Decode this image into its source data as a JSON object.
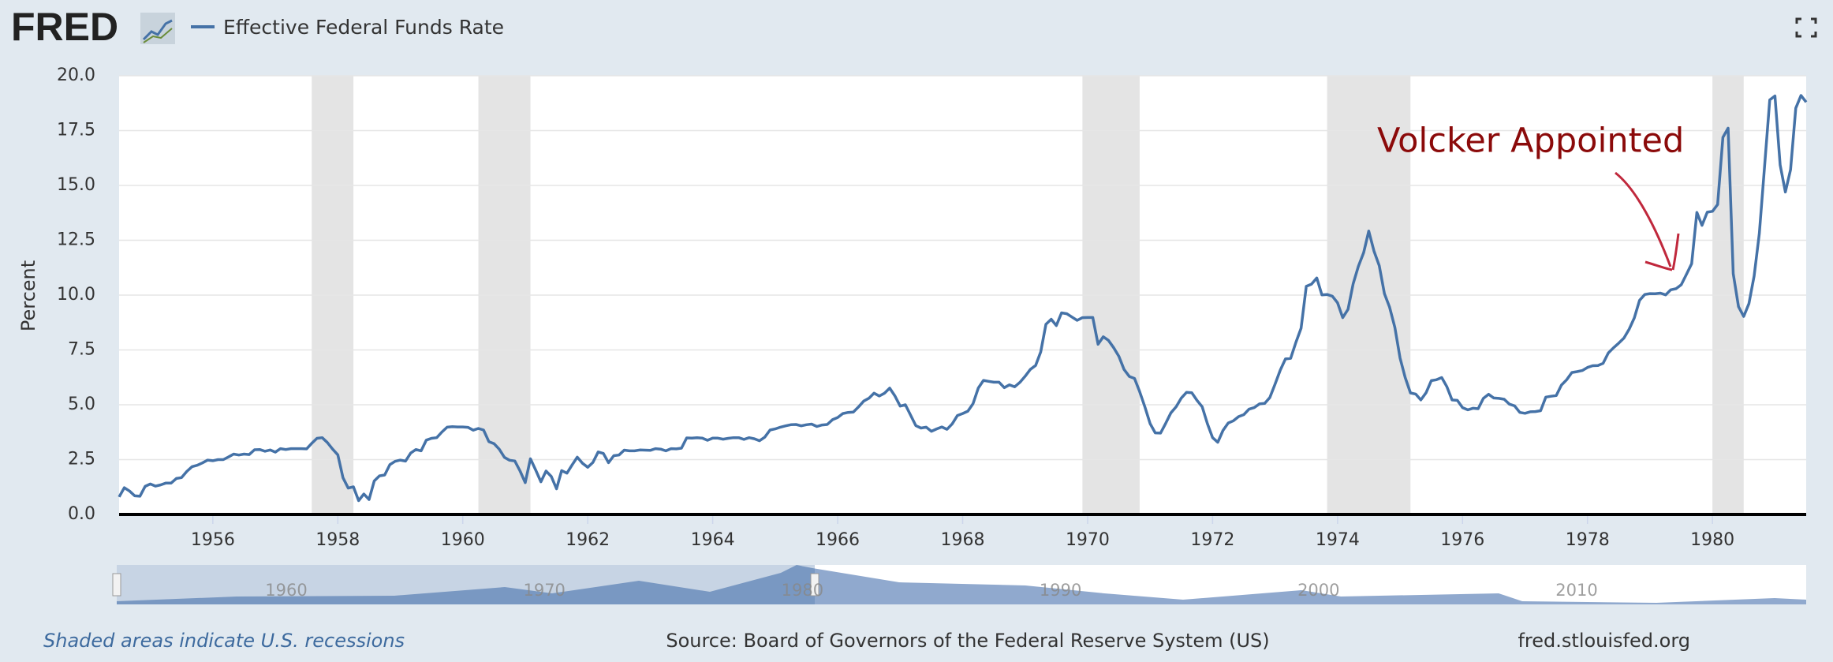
{
  "logo": "FRED",
  "footer": {
    "note": "Shaded areas indicate U.S. recessions",
    "source": "Source: Board of Governors of the Federal Reserve System (US)",
    "site": "fred.stlouisfed.org"
  },
  "navigator_labels": [
    "1960",
    "1970",
    "1980",
    "1990",
    "2000",
    "2010"
  ],
  "chart_data": {
    "type": "line",
    "y_label": "Percent",
    "annotation": "Volcker Appointed",
    "grid": true,
    "recessions": [
      [
        1957.583,
        1958.25
      ],
      [
        1960.25,
        1961.083
      ],
      [
        1969.917,
        1970.833
      ],
      [
        1973.833,
        1975.167
      ],
      [
        1980,
        1980.5
      ]
    ],
    "xlim": [
      1954.5,
      1981.5
    ],
    "xticks": [
      1956,
      1958,
      1960,
      1962,
      1964,
      1966,
      1968,
      1970,
      1972,
      1974,
      1976,
      1978,
      1980
    ],
    "ylim": [
      0,
      20
    ],
    "yticks": [
      {
        "value": 0,
        "label": "0.0"
      },
      {
        "value": 2.5,
        "label": "2.5"
      },
      {
        "value": 5,
        "label": "5.0"
      },
      {
        "value": 7.5,
        "label": "7.5"
      },
      {
        "value": 10,
        "label": "10.0"
      },
      {
        "value": 12.5,
        "label": "12.5"
      },
      {
        "value": 15,
        "label": "15.0"
      },
      {
        "value": 17.5,
        "label": "17.5"
      },
      {
        "value": 20,
        "label": "20.0"
      }
    ],
    "x": [
      1954.5,
      1954.583,
      1954.667,
      1954.75,
      1954.833,
      1954.917,
      1955,
      1955.083,
      1955.167,
      1955.25,
      1955.333,
      1955.417,
      1955.5,
      1955.583,
      1955.667,
      1955.75,
      1955.833,
      1955.917,
      1956,
      1956.083,
      1956.167,
      1956.25,
      1956.333,
      1956.417,
      1956.5,
      1956.583,
      1956.667,
      1956.75,
      1956.833,
      1956.917,
      1957,
      1957.083,
      1957.167,
      1957.25,
      1957.333,
      1957.417,
      1957.5,
      1957.583,
      1957.667,
      1957.75,
      1957.833,
      1957.917,
      1958,
      1958.083,
      1958.167,
      1958.25,
      1958.333,
      1958.417,
      1958.5,
      1958.583,
      1958.667,
      1958.75,
      1958.833,
      1958.917,
      1959,
      1959.083,
      1959.167,
      1959.25,
      1959.333,
      1959.417,
      1959.5,
      1959.583,
      1959.667,
      1959.75,
      1959.833,
      1959.917,
      1960,
      1960.083,
      1960.167,
      1960.25,
      1960.333,
      1960.417,
      1960.5,
      1960.583,
      1960.667,
      1960.75,
      1960.833,
      1960.917,
      1961,
      1961.083,
      1961.167,
      1961.25,
      1961.333,
      1961.417,
      1961.5,
      1961.583,
      1961.667,
      1961.75,
      1961.833,
      1961.917,
      1962,
      1962.083,
      1962.167,
      1962.25,
      1962.333,
      1962.417,
      1962.5,
      1962.583,
      1962.667,
      1962.75,
      1962.833,
      1962.917,
      1963,
      1963.083,
      1963.167,
      1963.25,
      1963.333,
      1963.417,
      1963.5,
      1963.583,
      1963.667,
      1963.75,
      1963.833,
      1963.917,
      1964,
      1964.083,
      1964.167,
      1964.25,
      1964.333,
      1964.417,
      1964.5,
      1964.583,
      1964.667,
      1964.75,
      1964.833,
      1964.917,
      1965,
      1965.083,
      1965.167,
      1965.25,
      1965.333,
      1965.417,
      1965.5,
      1965.583,
      1965.667,
      1965.75,
      1965.833,
      1965.917,
      1966,
      1966.083,
      1966.167,
      1966.25,
      1966.333,
      1966.417,
      1966.5,
      1966.583,
      1966.667,
      1966.75,
      1966.833,
      1966.917,
      1967,
      1967.083,
      1967.167,
      1967.25,
      1967.333,
      1967.417,
      1967.5,
      1967.583,
      1967.667,
      1967.75,
      1967.833,
      1967.917,
      1968,
      1968.083,
      1968.167,
      1968.25,
      1968.333,
      1968.417,
      1968.5,
      1968.583,
      1968.667,
      1968.75,
      1968.833,
      1968.917,
      1969,
      1969.083,
      1969.167,
      1969.25,
      1969.333,
      1969.417,
      1969.5,
      1969.583,
      1969.667,
      1969.75,
      1969.833,
      1969.917,
      1970,
      1970.083,
      1970.167,
      1970.25,
      1970.333,
      1970.417,
      1970.5,
      1970.583,
      1970.667,
      1970.75,
      1970.833,
      1970.917,
      1971,
      1971.083,
      1971.167,
      1971.25,
      1971.333,
      1971.417,
      1971.5,
      1971.583,
      1971.667,
      1971.75,
      1971.833,
      1971.917,
      1972,
      1972.083,
      1972.167,
      1972.25,
      1972.333,
      1972.417,
      1972.5,
      1972.583,
      1972.667,
      1972.75,
      1972.833,
      1972.917,
      1973,
      1973.083,
      1973.167,
      1973.25,
      1973.333,
      1973.417,
      1973.5,
      1973.583,
      1973.667,
      1973.75,
      1973.833,
      1973.917,
      1974,
      1974.083,
      1974.167,
      1974.25,
      1974.333,
      1974.417,
      1974.5,
      1974.583,
      1974.667,
      1974.75,
      1974.833,
      1974.917,
      1975,
      1975.083,
      1975.167,
      1975.25,
      1975.333,
      1975.417,
      1975.5,
      1975.583,
      1975.667,
      1975.75,
      1975.833,
      1975.917,
      1976,
      1976.083,
      1976.167,
      1976.25,
      1976.333,
      1976.417,
      1976.5,
      1976.583,
      1976.667,
      1976.75,
      1976.833,
      1976.917,
      1977,
      1977.083,
      1977.167,
      1977.25,
      1977.333,
      1977.417,
      1977.5,
      1977.583,
      1977.667,
      1977.75,
      1977.833,
      1977.917,
      1978,
      1978.083,
      1978.167,
      1978.25,
      1978.333,
      1978.417,
      1978.5,
      1978.583,
      1978.667,
      1978.75,
      1978.833,
      1978.917,
      1979,
      1979.083,
      1979.167,
      1979.25,
      1979.333,
      1979.417,
      1979.5,
      1979.583,
      1979.667,
      1979.75,
      1979.833,
      1979.917,
      1980,
      1980.083,
      1980.167,
      1980.25,
      1980.333,
      1980.417,
      1980.5,
      1980.583,
      1980.667,
      1980.75,
      1980.833,
      1980.917,
      1981,
      1981.083,
      1981.167,
      1981.25,
      1981.333,
      1981.417,
      1981.5
    ],
    "series": [
      {
        "name": "Effective Federal Funds Rate",
        "color": "#4572a7",
        "values": [
          0.8,
          1.22,
          1.07,
          0.85,
          0.83,
          1.28,
          1.39,
          1.29,
          1.35,
          1.43,
          1.43,
          1.64,
          1.68,
          1.96,
          2.18,
          2.24,
          2.35,
          2.48,
          2.45,
          2.5,
          2.5,
          2.62,
          2.75,
          2.71,
          2.75,
          2.73,
          2.95,
          2.96,
          2.88,
          2.94,
          2.84,
          3.0,
          2.96,
          3.0,
          3.0,
          3.0,
          2.99,
          3.24,
          3.47,
          3.5,
          3.28,
          2.98,
          2.72,
          1.67,
          1.2,
          1.26,
          0.63,
          0.93,
          0.68,
          1.53,
          1.76,
          1.8,
          2.27,
          2.42,
          2.48,
          2.43,
          2.8,
          2.96,
          2.9,
          3.39,
          3.47,
          3.5,
          3.76,
          3.98,
          4.0,
          3.99,
          3.99,
          3.97,
          3.84,
          3.92,
          3.85,
          3.32,
          3.23,
          2.98,
          2.6,
          2.47,
          2.44,
          1.98,
          1.45,
          2.54,
          2.02,
          1.49,
          1.98,
          1.73,
          1.17,
          2.0,
          1.88,
          2.26,
          2.61,
          2.33,
          2.15,
          2.37,
          2.85,
          2.78,
          2.36,
          2.68,
          2.71,
          2.93,
          2.9,
          2.9,
          2.94,
          2.93,
          2.92,
          3.0,
          2.98,
          2.9,
          3.0,
          2.99,
          3.02,
          3.49,
          3.48,
          3.5,
          3.48,
          3.38,
          3.48,
          3.48,
          3.43,
          3.47,
          3.5,
          3.5,
          3.42,
          3.5,
          3.45,
          3.36,
          3.52,
          3.85,
          3.9,
          3.98,
          4.04,
          4.09,
          4.1,
          4.04,
          4.09,
          4.12,
          4.01,
          4.08,
          4.1,
          4.32,
          4.42,
          4.6,
          4.65,
          4.67,
          4.9,
          5.17,
          5.3,
          5.53,
          5.4,
          5.53,
          5.76,
          5.4,
          4.94,
          5.0,
          4.53,
          4.05,
          3.94,
          3.98,
          3.79,
          3.9,
          3.99,
          3.88,
          4.13,
          4.51,
          4.6,
          4.71,
          5.05,
          5.76,
          6.11,
          6.07,
          6.03,
          6.03,
          5.78,
          5.91,
          5.82,
          6.02,
          6.3,
          6.61,
          6.79,
          7.41,
          8.67,
          8.9,
          8.61,
          9.19,
          9.15,
          9.0,
          8.85,
          8.97,
          8.98,
          8.98,
          7.76,
          8.1,
          7.94,
          7.6,
          7.21,
          6.61,
          6.29,
          6.2,
          5.6,
          4.9,
          4.14,
          3.72,
          3.71,
          4.16,
          4.63,
          4.91,
          5.31,
          5.57,
          5.55,
          5.2,
          4.91,
          4.14,
          3.5,
          3.29,
          3.83,
          4.17,
          4.27,
          4.46,
          4.55,
          4.8,
          4.87,
          5.04,
          5.06,
          5.33,
          5.94,
          6.58,
          7.09,
          7.12,
          7.84,
          8.49,
          10.4,
          10.5,
          10.78,
          10.01,
          10.03,
          9.95,
          9.65,
          8.97,
          9.35,
          10.51,
          11.31,
          11.93,
          12.92,
          12.01,
          11.34,
          10.06,
          9.45,
          8.53,
          7.13,
          6.24,
          5.54,
          5.49,
          5.22,
          5.55,
          6.1,
          6.14,
          6.24,
          5.82,
          5.22,
          5.2,
          4.87,
          4.77,
          4.84,
          4.82,
          5.29,
          5.48,
          5.31,
          5.29,
          5.25,
          5.03,
          4.95,
          4.65,
          4.61,
          4.68,
          4.69,
          4.73,
          5.35,
          5.39,
          5.42,
          5.9,
          6.14,
          6.47,
          6.51,
          6.56,
          6.7,
          6.78,
          6.79,
          6.89,
          7.36,
          7.6,
          7.81,
          8.04,
          8.45,
          8.96,
          9.76,
          10.03,
          10.07,
          10.06,
          10.09,
          10.01,
          10.24,
          10.29,
          10.47,
          10.94,
          11.43,
          13.77,
          13.18,
          13.78,
          13.82,
          14.13,
          17.19,
          17.61,
          10.98,
          9.47,
          9.03,
          9.61,
          10.87,
          12.81,
          15.85,
          18.9,
          19.08,
          15.93,
          14.7,
          15.72,
          18.52,
          19.1,
          18.8
        ]
      }
    ]
  }
}
